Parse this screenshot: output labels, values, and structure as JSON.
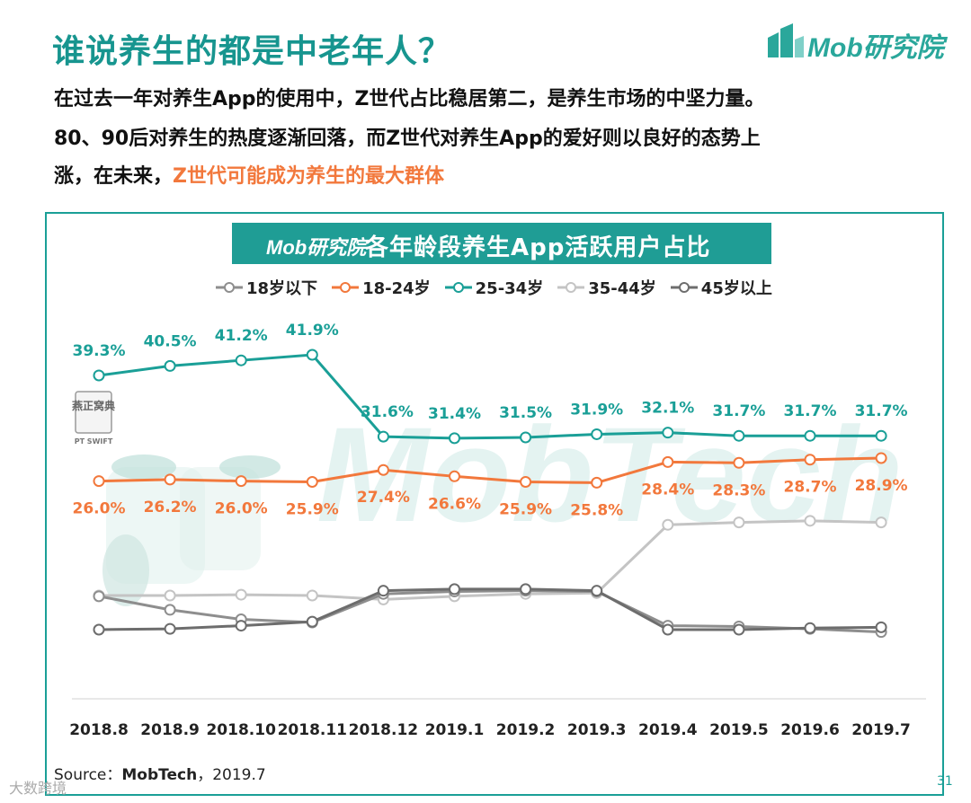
{
  "header": {
    "title": "谁说养生的都是中老年人？",
    "logo_text": "Mob研究院"
  },
  "body": {
    "line1": "在过去一年对养生App的使用中，Z世代占比稳居第二，是养生市场的中坚力量。",
    "line2": "80、90后对养生的热度逐渐回落，而Z世代对养生App的爱好则以良好的态势上",
    "line3_prefix": "涨，在未来，",
    "line3_highlight": "Z世代可能成为养生的最大群体"
  },
  "chart_header": {
    "logo_text": "Mob研究院",
    "title": "各年龄段养生App活跃用户占比"
  },
  "watermark": {
    "brand": "MobTech",
    "jar_label": "燕正窝典",
    "jar_sub": "PT SWIFT"
  },
  "footer": {
    "source_prefix": "Source：",
    "source_name": "MobTech",
    "source_date": "，2019.7",
    "page_number": "31",
    "corner_mark": "大数跨境"
  },
  "colors": {
    "teal": "#1a9f97",
    "orange": "#f2783c",
    "gray_dark": "#6d6d6d",
    "gray_light": "#c4c4c4",
    "gray_mid": "#8e8e8e"
  },
  "chart_data": {
    "type": "line",
    "title": "各年龄段养生App活跃用户占比",
    "categories": [
      "2018.8",
      "2018.9",
      "2018.10",
      "2018.11",
      "2018.12",
      "2019.1",
      "2019.2",
      "2019.3",
      "2019.4",
      "2019.5",
      "2019.6",
      "2019.7"
    ],
    "ylim": [
      0,
      45
    ],
    "grid": false,
    "legend": "top",
    "series": [
      {
        "name": "18岁以下",
        "color": "#8e8e8e",
        "labeled": false,
        "values": [
          11.5,
          9.8,
          8.6,
          8.2,
          11.8,
          12.1,
          12.2,
          12.1,
          7.8,
          7.7,
          7.4,
          7.0
        ]
      },
      {
        "name": "18-24岁",
        "color": "#f2783c",
        "labeled": true,
        "values": [
          26.0,
          26.2,
          26.0,
          25.9,
          27.4,
          26.6,
          25.9,
          25.8,
          28.4,
          28.3,
          28.7,
          28.9
        ],
        "labels": [
          "26.0%",
          "26.2%",
          "26.0%",
          "25.9%",
          "27.4%",
          "26.6%",
          "25.9%",
          "25.8%",
          "28.4%",
          "28.3%",
          "28.7%",
          "28.9%"
        ]
      },
      {
        "name": "25-34岁",
        "color": "#1a9f97",
        "labeled": true,
        "values": [
          39.3,
          40.5,
          41.2,
          41.9,
          31.6,
          31.4,
          31.5,
          31.9,
          32.1,
          31.7,
          31.7,
          31.7
        ],
        "labels": [
          "39.3%",
          "40.5%",
          "41.2%",
          "41.9%",
          "31.6%",
          "31.4%",
          "31.5%",
          "31.9%",
          "32.1%",
          "31.7%",
          "31.7%",
          "31.7%"
        ]
      },
      {
        "name": "35-44岁",
        "color": "#c4c4c4",
        "labeled": false,
        "values": [
          11.6,
          11.6,
          11.7,
          11.6,
          11.1,
          11.5,
          11.8,
          11.9,
          20.5,
          20.8,
          21.0,
          20.8
        ]
      },
      {
        "name": "45岁以上",
        "color": "#6d6d6d",
        "labeled": false,
        "values": [
          7.3,
          7.4,
          7.8,
          8.3,
          12.2,
          12.4,
          12.4,
          12.2,
          7.3,
          7.3,
          7.5,
          7.6
        ]
      }
    ]
  }
}
